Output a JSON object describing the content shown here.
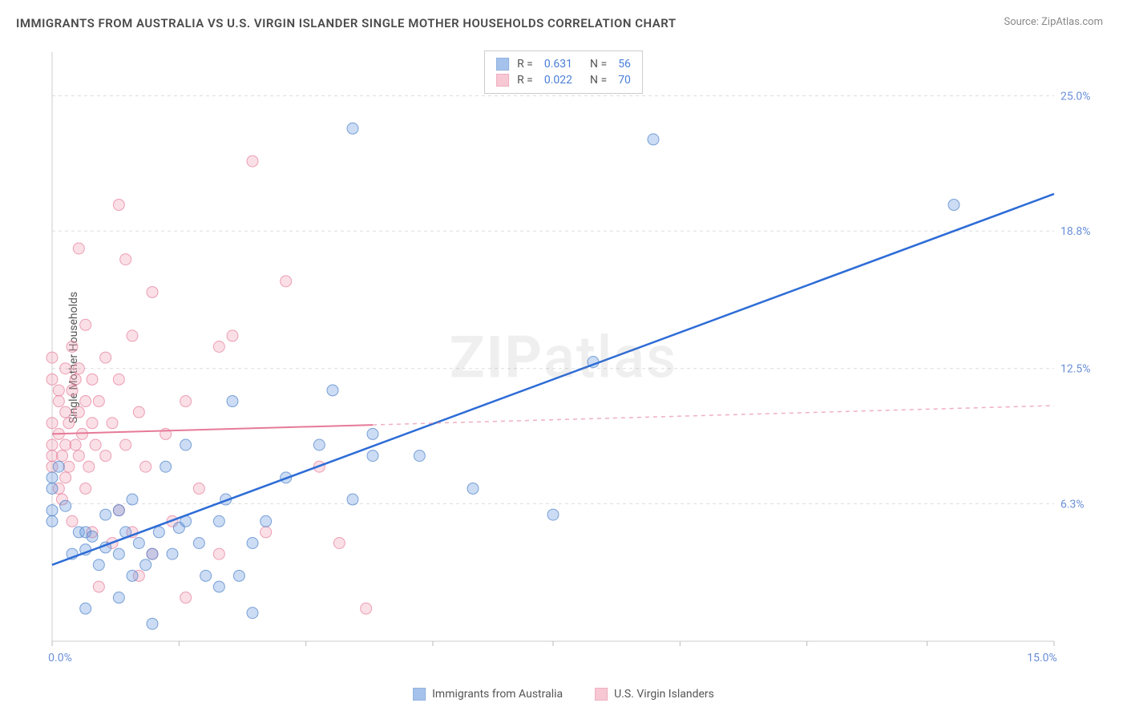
{
  "title": "IMMIGRANTS FROM AUSTRALIA VS U.S. VIRGIN ISLANDER SINGLE MOTHER HOUSEHOLDS CORRELATION CHART",
  "source": "Source: ZipAtlas.com",
  "y_axis_label": "Single Mother Households",
  "watermark_a": "ZIP",
  "watermark_b": "atlas",
  "chart": {
    "type": "scatter",
    "background_color": "#ffffff",
    "grid_color": "#dddddd",
    "axis_color": "#cccccc",
    "xlim": [
      0.0,
      15.0
    ],
    "ylim": [
      0.0,
      27.0
    ],
    "x_ticks": [
      0.0,
      1.9,
      3.8,
      5.7,
      7.5,
      9.4,
      11.3,
      13.1,
      15.0
    ],
    "x_tick_labels": {
      "0": "0.0%",
      "8": "15.0%"
    },
    "y_gridlines": [
      6.3,
      12.5,
      18.8,
      25.0
    ],
    "y_tick_labels": [
      "6.3%",
      "12.5%",
      "18.8%",
      "25.0%"
    ],
    "marker_radius": 7,
    "marker_fill_opacity": 0.35,
    "marker_stroke_opacity": 0.7,
    "series": [
      {
        "name": "Immigrants from Australia",
        "color": "#6a9be0",
        "stroke": "#4a7fc8",
        "R": "0.631",
        "N": "56",
        "trend": {
          "x1": 0.0,
          "y1": 3.5,
          "x2": 15.0,
          "y2": 20.5,
          "solid_until_x": 15.0,
          "line_color": "#2d6cd6",
          "line_width": 2.5
        },
        "points": [
          [
            0.0,
            7.5
          ],
          [
            0.0,
            7.0
          ],
          [
            0.0,
            6.0
          ],
          [
            0.0,
            5.5
          ],
          [
            0.1,
            8.0
          ],
          [
            0.2,
            6.2
          ],
          [
            0.3,
            4.0
          ],
          [
            0.4,
            5.0
          ],
          [
            0.5,
            4.2
          ],
          [
            0.5,
            5.0
          ],
          [
            0.5,
            1.5
          ],
          [
            0.6,
            4.8
          ],
          [
            0.7,
            3.5
          ],
          [
            0.8,
            4.3
          ],
          [
            0.8,
            5.8
          ],
          [
            1.0,
            4.0
          ],
          [
            1.0,
            6.0
          ],
          [
            1.0,
            2.0
          ],
          [
            1.1,
            5.0
          ],
          [
            1.2,
            3.0
          ],
          [
            1.2,
            6.5
          ],
          [
            1.3,
            4.5
          ],
          [
            1.4,
            3.5
          ],
          [
            1.5,
            4.0
          ],
          [
            1.5,
            0.8
          ],
          [
            1.6,
            5.0
          ],
          [
            1.7,
            8.0
          ],
          [
            1.8,
            4.0
          ],
          [
            1.9,
            5.2
          ],
          [
            2.0,
            9.0
          ],
          [
            2.0,
            5.5
          ],
          [
            2.2,
            4.5
          ],
          [
            2.3,
            3.0
          ],
          [
            2.5,
            5.5
          ],
          [
            2.5,
            2.5
          ],
          [
            2.6,
            6.5
          ],
          [
            2.7,
            11.0
          ],
          [
            2.8,
            3.0
          ],
          [
            3.0,
            4.5
          ],
          [
            3.0,
            1.3
          ],
          [
            3.2,
            5.5
          ],
          [
            3.5,
            7.5
          ],
          [
            4.0,
            9.0
          ],
          [
            4.2,
            11.5
          ],
          [
            4.5,
            23.5
          ],
          [
            4.5,
            6.5
          ],
          [
            4.8,
            8.5
          ],
          [
            4.8,
            9.5
          ],
          [
            5.5,
            8.5
          ],
          [
            6.3,
            7.0
          ],
          [
            7.5,
            5.8
          ],
          [
            8.1,
            12.8
          ],
          [
            9.0,
            23.0
          ],
          [
            13.5,
            20.0
          ]
        ]
      },
      {
        "name": "U.S. Virgin Islanders",
        "color": "#f2a5b8",
        "stroke": "#e67a98",
        "R": "0.022",
        "N": "70",
        "trend": {
          "x1": 0.0,
          "y1": 9.5,
          "x2": 15.0,
          "y2": 10.8,
          "solid_until_x": 4.8,
          "line_color": "#e67a98",
          "line_width": 2
        },
        "points": [
          [
            0.0,
            9.0
          ],
          [
            0.0,
            8.0
          ],
          [
            0.0,
            8.5
          ],
          [
            0.0,
            10.0
          ],
          [
            0.0,
            12.0
          ],
          [
            0.0,
            13.0
          ],
          [
            0.1,
            7.0
          ],
          [
            0.1,
            9.5
          ],
          [
            0.1,
            11.0
          ],
          [
            0.1,
            11.5
          ],
          [
            0.15,
            8.5
          ],
          [
            0.15,
            6.5
          ],
          [
            0.2,
            10.5
          ],
          [
            0.2,
            12.5
          ],
          [
            0.2,
            7.5
          ],
          [
            0.2,
            9.0
          ],
          [
            0.25,
            8.0
          ],
          [
            0.25,
            10.0
          ],
          [
            0.3,
            11.5
          ],
          [
            0.3,
            5.5
          ],
          [
            0.3,
            13.5
          ],
          [
            0.35,
            9.0
          ],
          [
            0.35,
            12.0
          ],
          [
            0.4,
            8.5
          ],
          [
            0.4,
            10.5
          ],
          [
            0.4,
            12.5
          ],
          [
            0.4,
            18.0
          ],
          [
            0.45,
            9.5
          ],
          [
            0.5,
            11.0
          ],
          [
            0.5,
            7.0
          ],
          [
            0.5,
            14.5
          ],
          [
            0.55,
            8.0
          ],
          [
            0.6,
            10.0
          ],
          [
            0.6,
            12.0
          ],
          [
            0.6,
            5.0
          ],
          [
            0.65,
            9.0
          ],
          [
            0.7,
            11.0
          ],
          [
            0.7,
            2.5
          ],
          [
            0.8,
            8.5
          ],
          [
            0.8,
            13.0
          ],
          [
            0.9,
            10.0
          ],
          [
            0.9,
            4.5
          ],
          [
            1.0,
            12.0
          ],
          [
            1.0,
            20.0
          ],
          [
            1.0,
            6.0
          ],
          [
            1.1,
            9.0
          ],
          [
            1.1,
            17.5
          ],
          [
            1.2,
            14.0
          ],
          [
            1.2,
            5.0
          ],
          [
            1.3,
            10.5
          ],
          [
            1.3,
            3.0
          ],
          [
            1.4,
            8.0
          ],
          [
            1.5,
            16.0
          ],
          [
            1.5,
            4.0
          ],
          [
            1.7,
            9.5
          ],
          [
            1.8,
            5.5
          ],
          [
            2.0,
            11.0
          ],
          [
            2.0,
            2.0
          ],
          [
            2.2,
            7.0
          ],
          [
            2.5,
            13.5
          ],
          [
            2.5,
            4.0
          ],
          [
            2.7,
            14.0
          ],
          [
            3.0,
            22.0
          ],
          [
            3.2,
            5.0
          ],
          [
            3.5,
            16.5
          ],
          [
            4.0,
            8.0
          ],
          [
            4.3,
            4.5
          ],
          [
            4.7,
            1.5
          ]
        ]
      }
    ]
  },
  "legend_top": {
    "R_label": "R  =",
    "N_label": "N  ="
  },
  "legend_bottom": [
    {
      "label": "Immigrants from Australia",
      "color": "#6a9be0",
      "stroke": "#4a7fc8"
    },
    {
      "label": "U.S. Virgin Islanders",
      "color": "#f2a5b8",
      "stroke": "#e67a98"
    }
  ]
}
